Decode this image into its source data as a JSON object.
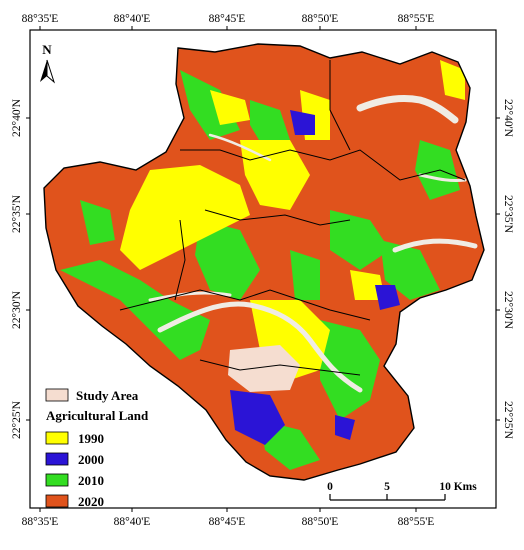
{
  "axes": {
    "top": [
      "88°35'E",
      "88°40'E",
      "88°45'E",
      "88°50'E",
      "88°55'E"
    ],
    "bottom": [
      "88°35'E",
      "88°40'E",
      "88°45'E",
      "88°50'E",
      "88°55'E"
    ],
    "left": [
      "22°40'N",
      "22°35'N",
      "22°30'N",
      "22°25'N"
    ],
    "right": [
      "22°40'N",
      "22°35'N",
      "22°30'N",
      "22°25'N"
    ]
  },
  "north_arrow": {
    "label": "N"
  },
  "legend": {
    "study_area_label": "Study Area",
    "study_area_color": "#f5ddd0",
    "title": "Agricultural Land",
    "items": [
      {
        "label": "1990",
        "color": "#ffff00"
      },
      {
        "label": "2000",
        "color": "#2b14d6"
      },
      {
        "label": "2010",
        "color": "#33dd22"
      },
      {
        "label": "2020",
        "color": "#e0531c"
      }
    ]
  },
  "scale_bar": {
    "labels": [
      "0",
      "5",
      "10 Kms"
    ],
    "values_km": [
      0,
      5,
      10
    ]
  },
  "colors": {
    "river": "#f0ece4",
    "background_land": "#f5ddd0",
    "boundary": "#000000"
  }
}
